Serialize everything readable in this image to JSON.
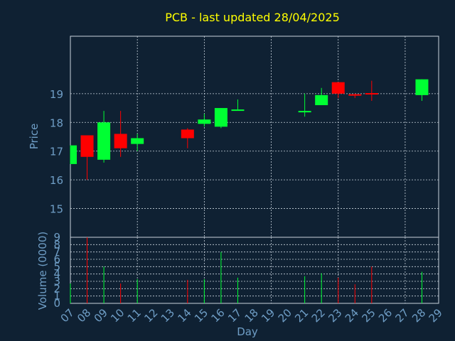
{
  "colors": {
    "background": "#0f2133",
    "title": "#ffff00",
    "axis_text": "#6f9ec6",
    "grid": "#c8d2dc",
    "up": "#00ff33",
    "down": "#ff0000"
  },
  "chart_data": {
    "type": "candlestick",
    "title": "PCB - last updated 28/04/2025",
    "xlabel": "Day",
    "price_ylabel": "Price",
    "volume_ylabel": "Volume (0000)",
    "x_ticks": [
      "07",
      "08",
      "09",
      "10",
      "11",
      "12",
      "13",
      "14",
      "15",
      "16",
      "17",
      "18",
      "19",
      "20",
      "21",
      "22",
      "23",
      "24",
      "25",
      "26",
      "27",
      "28",
      "29"
    ],
    "price_ticks": [
      15,
      16,
      17,
      18,
      19
    ],
    "price_ylim": [
      14,
      21
    ],
    "volume_ticks": [
      0,
      1,
      2,
      3,
      4,
      5,
      6,
      7,
      8,
      9
    ],
    "volume_ylim": [
      0,
      9
    ],
    "grid": true,
    "candles": [
      {
        "day": 7,
        "open": 16.55,
        "high": 17.2,
        "low": 16.55,
        "close": 17.2,
        "volume": 2.7
      },
      {
        "day": 8,
        "open": 17.55,
        "high": 17.55,
        "low": 16.0,
        "close": 16.8,
        "volume": 9.0
      },
      {
        "day": 9,
        "open": 16.7,
        "high": 18.4,
        "low": 16.6,
        "close": 18.0,
        "volume": 5.0
      },
      {
        "day": 10,
        "open": 17.6,
        "high": 18.4,
        "low": 16.8,
        "close": 17.1,
        "volume": 2.7
      },
      {
        "day": 11,
        "open": 17.25,
        "high": 17.6,
        "low": 17.0,
        "close": 17.45,
        "volume": 3.3
      },
      {
        "day": 14,
        "open": 17.75,
        "high": 17.8,
        "low": 17.1,
        "close": 17.45,
        "volume": 3.2
      },
      {
        "day": 15,
        "open": 17.95,
        "high": 18.3,
        "low": 17.85,
        "close": 18.1,
        "volume": 3.3
      },
      {
        "day": 16,
        "open": 17.85,
        "high": 18.5,
        "low": 17.8,
        "close": 18.5,
        "volume": 7.0
      },
      {
        "day": 17,
        "open": 18.45,
        "high": 18.8,
        "low": 18.45,
        "close": 18.45,
        "volume": 3.5
      },
      {
        "day": 21,
        "open": 18.35,
        "high": 19.0,
        "low": 18.2,
        "close": 18.4,
        "volume": 3.7
      },
      {
        "day": 22,
        "open": 18.6,
        "high": 19.2,
        "low": 18.6,
        "close": 18.95,
        "volume": 4.1
      },
      {
        "day": 23,
        "open": 19.4,
        "high": 19.4,
        "low": 18.85,
        "close": 19.0,
        "volume": 3.5
      },
      {
        "day": 24,
        "open": 18.98,
        "high": 19.0,
        "low": 18.85,
        "close": 18.95,
        "volume": 2.6
      },
      {
        "day": 25,
        "open": 19.02,
        "high": 19.45,
        "low": 18.75,
        "close": 19.0,
        "volume": 5.0
      },
      {
        "day": 28,
        "open": 18.95,
        "high": 19.5,
        "low": 18.75,
        "close": 19.5,
        "volume": 4.3
      }
    ]
  }
}
